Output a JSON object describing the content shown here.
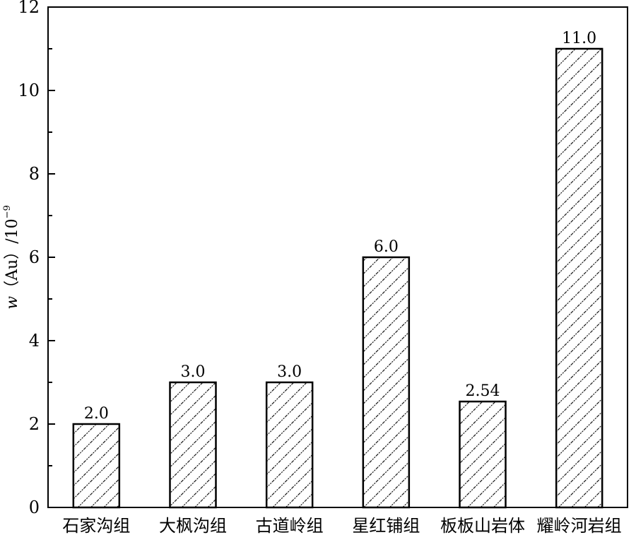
{
  "chart_data": {
    "type": "bar",
    "title": "",
    "xlabel": "",
    "ylabel": {
      "var": "w",
      "paren_open": "（",
      "element": "Au",
      "paren_close": "）",
      "slash": "/10",
      "exponent": "−9"
    },
    "categories": [
      "石家沟组",
      "大枫沟组",
      "古道岭组",
      "星红铺组",
      "板板山岩体",
      "耀岭河岩组"
    ],
    "values": [
      2.0,
      3.0,
      3.0,
      6.0,
      2.54,
      11.0
    ],
    "data_labels": [
      "2.0",
      "3.0",
      "3.0",
      "6.0",
      "2.54",
      "11.0"
    ],
    "ylim": [
      0,
      12
    ],
    "yticks": [
      0,
      2,
      4,
      6,
      8,
      10,
      12
    ],
    "grid": false,
    "legend": "none",
    "bar_fill": "diagonal-hatch",
    "colors": {
      "bar_stroke": "#000000",
      "hatch": "#000000",
      "background": "#ffffff"
    }
  }
}
